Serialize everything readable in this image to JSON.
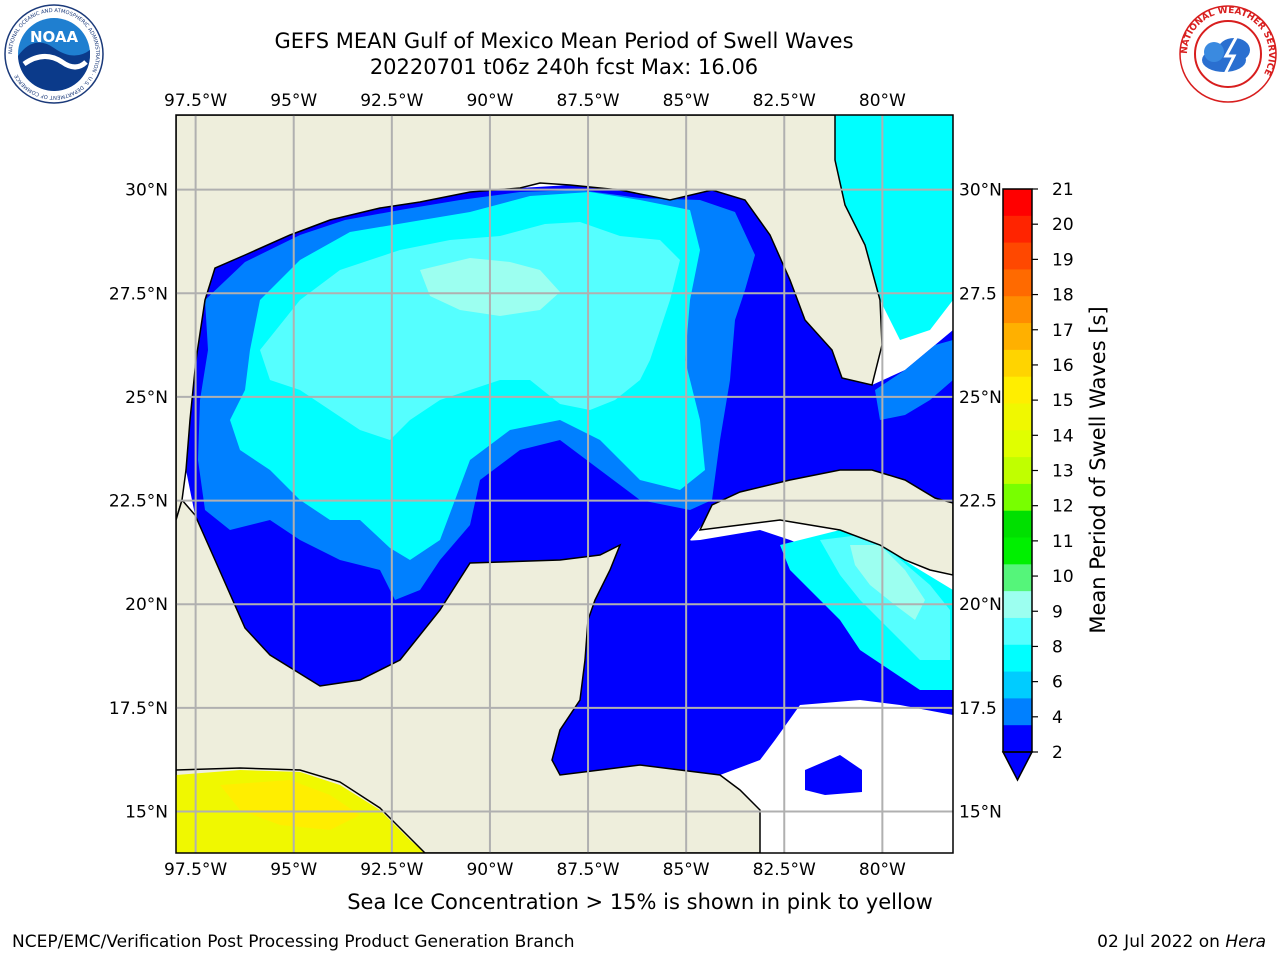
{
  "header": {
    "title_line1": "GEFS MEAN Gulf of Mexico Mean Period of Swell Waves",
    "title_line2": "20220701 t06z 240h fcst   Max: 16.06"
  },
  "logos": {
    "left": {
      "name": "noaa-logo",
      "text": "NOAA",
      "ring_text": "NATIONAL OCEANIC AND ATMOSPHERIC ADMINISTRATION · U.S. DEPARTMENT OF COMMERCE"
    },
    "right": {
      "name": "nws-logo",
      "ring_text": "NATIONAL WEATHER SERVICE"
    }
  },
  "map": {
    "lon_labels": [
      "97.5°W",
      "95°W",
      "92.5°W",
      "90°W",
      "87.5°W",
      "85°W",
      "82.5°W",
      "80°W"
    ],
    "lon_values": [
      -97.5,
      -95,
      -92.5,
      -90,
      -87.5,
      -85,
      -82.5,
      -80
    ],
    "lat_labels": [
      "30°N",
      "27.5°N",
      "25°N",
      "22.5°N",
      "20°N",
      "17.5°N",
      "15°N"
    ],
    "lat_values": [
      30,
      27.5,
      25,
      22.5,
      20,
      17.5,
      15
    ],
    "right_lat_labels": [
      "30°N",
      "27.5",
      "25°N",
      "22.5",
      "20°N",
      "17.5",
      "15°N"
    ],
    "extent": {
      "lon_min": -98,
      "lon_max": -78.2,
      "lat_min": 14,
      "lat_max": 31.8
    },
    "land_color": "#eeeedc",
    "grid_color": "#b0b0b0"
  },
  "colorbar": {
    "label": "Mean Period of Swell Waves [s]",
    "ticks": [
      "21",
      "20",
      "19",
      "18",
      "17",
      "16",
      "15",
      "14",
      "13",
      "12",
      "11",
      "10",
      "9",
      "8",
      "6",
      "4",
      "2"
    ],
    "colors": [
      "#ff0000",
      "#ff2400",
      "#ff4800",
      "#ff6a00",
      "#ff8c00",
      "#ffb000",
      "#ffd400",
      "#ffee00",
      "#f0f800",
      "#e0ff00",
      "#c0ff00",
      "#78ff00",
      "#00e000",
      "#00f000",
      "#55f57a",
      "#9cfff0",
      "#55ffff",
      "#00ffff",
      "#00ccff",
      "#0080ff",
      "#0000ff"
    ]
  },
  "footer": {
    "note": "Sea Ice Concentration > 15% is shown in pink to yellow",
    "credit": "NCEP/EMC/Verification Post Processing Product Generation Branch",
    "date": "02 Jul 2022 on",
    "host": "Hera"
  }
}
